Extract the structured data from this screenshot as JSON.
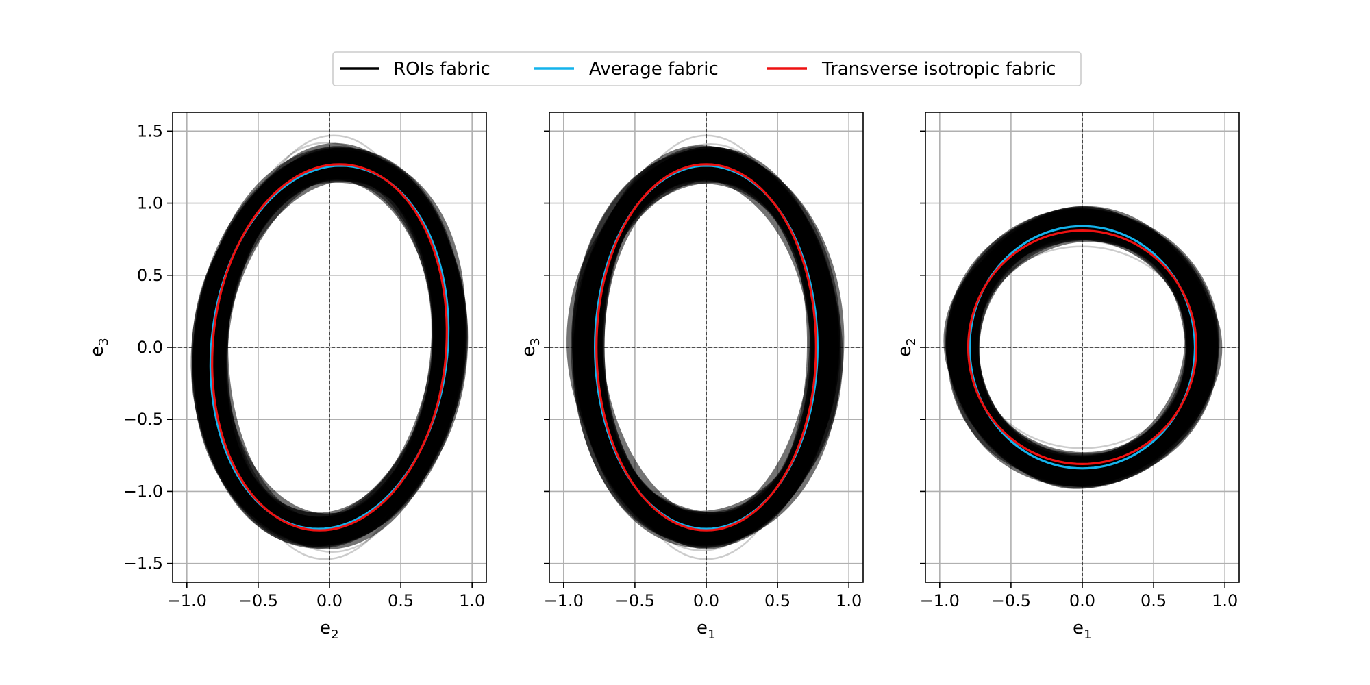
{
  "legend": {
    "placement": "top-center",
    "items": [
      {
        "label": "ROIs fabric",
        "color": "#000000"
      },
      {
        "label": "Average fabric",
        "color": "#14b3ec"
      },
      {
        "label": "Transverse isotropic fabric",
        "color": "#ee1111"
      }
    ]
  },
  "chart_data": [
    {
      "type": "line",
      "panel": "e2-e3",
      "xlabel": {
        "base": "e",
        "sub": "2"
      },
      "ylabel": {
        "base": "e",
        "sub": "3"
      },
      "xlim": [
        -1.1,
        1.1
      ],
      "ylim": [
        -1.63,
        1.63
      ],
      "xticks": [
        -1.0,
        -0.5,
        0.0,
        0.5,
        1.0
      ],
      "xtick_labels": [
        "−1.0",
        "−0.5",
        "0.0",
        "0.5",
        "1.0"
      ],
      "yticks": [
        -1.5,
        -1.0,
        -0.5,
        0.0,
        0.5,
        1.0,
        1.5
      ],
      "ytick_labels": [
        "−1.5",
        "−1.0",
        "−0.5",
        "0.0",
        "0.5",
        "1.0",
        "1.5"
      ],
      "show_yticklabels": true,
      "grid": true,
      "zero_lines": true,
      "rois_band": {
        "a": 0.84,
        "b": 1.27,
        "tilt": 0.075,
        "spread": 0.09,
        "count": 60,
        "outliers": [
          {
            "a": 0.72,
            "b": 1.47,
            "tilt": 0.03
          },
          {
            "a": 0.75,
            "b": 1.42,
            "tilt": -0.02
          },
          {
            "a": 0.78,
            "b": 1.38,
            "tilt": 0.1
          }
        ]
      },
      "series": [
        {
          "name": "Average fabric",
          "a": 0.83,
          "b": 1.26,
          "tilt": 0.08
        },
        {
          "name": "Transverse isotropic fabric",
          "a": 0.82,
          "b": 1.27,
          "tilt": 0.07
        }
      ]
    },
    {
      "type": "line",
      "panel": "e1-e3",
      "xlabel": {
        "base": "e",
        "sub": "1"
      },
      "ylabel": {
        "base": "e",
        "sub": "3"
      },
      "xlim": [
        -1.1,
        1.1
      ],
      "ylim": [
        -1.63,
        1.63
      ],
      "xticks": [
        -1.0,
        -0.5,
        0.0,
        0.5,
        1.0
      ],
      "xtick_labels": [
        "−1.0",
        "−0.5",
        "0.0",
        "0.5",
        "1.0"
      ],
      "yticks": [
        -1.5,
        -1.0,
        -0.5,
        0.0,
        0.5,
        1.0,
        1.5
      ],
      "ytick_labels": [],
      "show_yticklabels": false,
      "grid": true,
      "zero_lines": true,
      "rois_band": {
        "a": 0.84,
        "b": 1.27,
        "tilt": 0.0,
        "spread": 0.09,
        "count": 60,
        "outliers": [
          {
            "a": 0.72,
            "b": 1.47,
            "tilt": 0.0
          },
          {
            "a": 0.76,
            "b": 1.41,
            "tilt": 0.03
          },
          {
            "a": 0.8,
            "b": 1.36,
            "tilt": -0.03
          }
        ]
      },
      "series": [
        {
          "name": "Average fabric",
          "a": 0.78,
          "b": 1.26,
          "tilt": 0.0
        },
        {
          "name": "Transverse isotropic fabric",
          "a": 0.77,
          "b": 1.27,
          "tilt": 0.0
        }
      ]
    },
    {
      "type": "line",
      "panel": "e1-e2",
      "xlabel": {
        "base": "e",
        "sub": "1"
      },
      "ylabel": {
        "base": "e",
        "sub": "2"
      },
      "xlim": [
        -1.1,
        1.1
      ],
      "ylim": [
        -1.63,
        1.63
      ],
      "xticks": [
        -1.0,
        -0.5,
        0.0,
        0.5,
        1.0
      ],
      "xtick_labels": [
        "−1.0",
        "−0.5",
        "0.0",
        "0.5",
        "1.0"
      ],
      "yticks": [
        -1.5,
        -1.0,
        -0.5,
        0.0,
        0.5,
        1.0,
        1.5
      ],
      "ytick_labels": [],
      "show_yticklabels": false,
      "grid": true,
      "zero_lines": true,
      "rois_band": {
        "a": 0.85,
        "b": 0.86,
        "tilt": 0.0,
        "spread": 0.09,
        "count": 60,
        "outliers": [
          {
            "a": 0.78,
            "b": 0.7,
            "tilt": 0.0
          },
          {
            "a": 0.76,
            "b": 0.74,
            "tilt": 0.0
          }
        ]
      },
      "series": [
        {
          "name": "Average fabric",
          "a": 0.79,
          "b": 0.84,
          "tilt": 0.0
        },
        {
          "name": "Transverse isotropic fabric",
          "a": 0.8,
          "b": 0.81,
          "tilt": 0.0
        }
      ]
    }
  ]
}
